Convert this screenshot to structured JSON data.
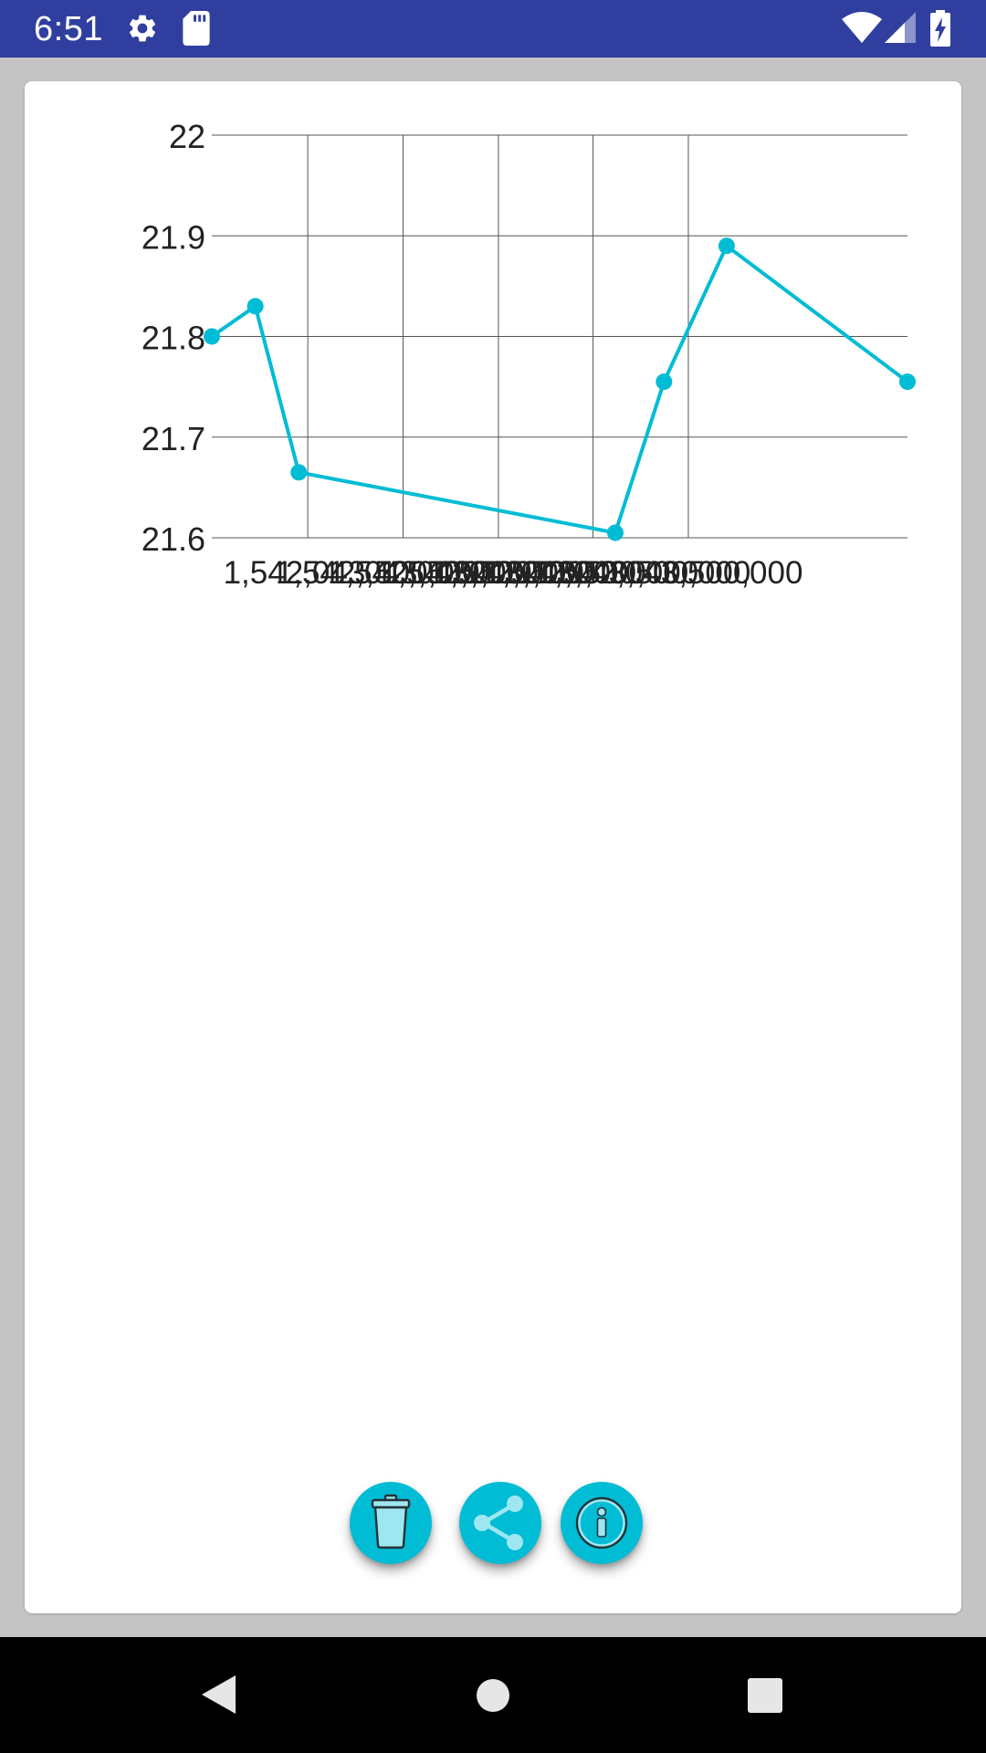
{
  "status_bar": {
    "time": "6:51",
    "background_color": "#303f9f",
    "icons": [
      "settings-gear-icon",
      "sd-card-icon",
      "wifi-icon",
      "cell-signal-icon",
      "battery-charging-icon"
    ]
  },
  "chart_data": {
    "type": "line",
    "title": "",
    "xlabel": "",
    "ylabel": "",
    "y_ticks": [
      "22",
      "21.9",
      "21.8",
      "21.7",
      "21.6"
    ],
    "ylim": [
      21.6,
      22
    ],
    "x_tick_labels_overlapping": "1,542,043,500,000",
    "x": [
      0,
      0.0625,
      0.125,
      0.58,
      0.65,
      0.74,
      1.0
    ],
    "series": [
      {
        "values": [
          21.8,
          21.83,
          21.665,
          21.605,
          21.755,
          21.89,
          21.755
        ],
        "color": "#00bcd4"
      }
    ],
    "grid": true,
    "grid_color": "#555555",
    "line_color": "#00bcd4"
  },
  "fabs": [
    {
      "icon": "trash-icon",
      "name": "delete-button"
    },
    {
      "icon": "share-icon",
      "name": "share-button"
    },
    {
      "icon": "info-icon",
      "name": "info-button"
    }
  ],
  "accent_color": "#00bcd4",
  "nav_bar": {
    "icons": [
      "back-triangle-icon",
      "home-circle-icon",
      "recents-square-icon"
    ]
  }
}
